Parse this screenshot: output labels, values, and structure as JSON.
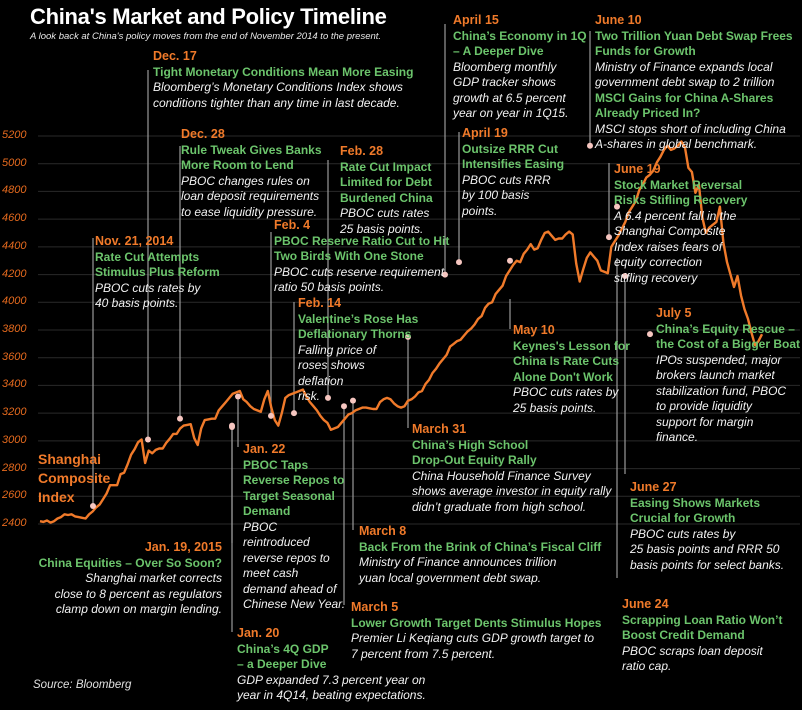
{
  "title": "China's Market and Policy Timeline",
  "subtitle": "A look back at China's policy moves from the end of November 2014 to the present.",
  "source": "Source: Bloomberg",
  "colors": {
    "background": "#000000",
    "line": "#f07a2a",
    "date": "#f07a2a",
    "headline": "#6cc46c",
    "body": "#f2f2f2",
    "marker": "#f6c6c0",
    "leader": "#9a9a9a",
    "grid": "#2a2a2a"
  },
  "chart_data": {
    "type": "line",
    "title": "China's Market and Policy Timeline",
    "series_label": [
      "Shanghai",
      "Composite",
      "Index"
    ],
    "xlabel": "",
    "ylabel": "",
    "ylim": [
      2400,
      5200
    ],
    "yticks": [
      5200,
      5000,
      4800,
      4600,
      4400,
      4200,
      4000,
      3800,
      3600,
      3400,
      3200,
      3000,
      2800,
      2600,
      2400
    ],
    "grid": true,
    "x_range": [
      "2014-11-21",
      "2015-07-08"
    ],
    "series": [
      {
        "name": "Shanghai Composite Index",
        "values": [
          2420,
          2415,
          2425,
          2410,
          2420,
          2440,
          2450,
          2470,
          2465,
          2470,
          2455,
          2450,
          2445,
          2440,
          2470,
          2490,
          2520,
          2540,
          2580,
          2620,
          2680,
          2680,
          2680,
          2760,
          2770,
          2830,
          2900,
          2940,
          2990,
          3010,
          2840,
          2930,
          2910,
          2935,
          2945,
          2945,
          2985,
          3015,
          3050,
          3050,
          3090,
          3110,
          3115,
          3120,
          3020,
          2970,
          3090,
          3150,
          3155,
          3160,
          3160,
          3220,
          3250,
          3280,
          3310,
          3340,
          3350,
          3360,
          3300,
          3280,
          3250,
          3230,
          3220,
          3210,
          3300,
          3360,
          3240,
          3150,
          3110,
          3200,
          3310,
          3330,
          3340,
          3350,
          3360,
          3370,
          3320,
          3280,
          3250,
          3220,
          3180,
          3150,
          3130,
          3080,
          3090,
          3100,
          3130,
          3160,
          3190,
          3200,
          3220,
          3230,
          3240,
          3240,
          3235,
          3230,
          3230,
          3280,
          3300,
          3310,
          3300,
          3270,
          3250,
          3240,
          3250,
          3290,
          3300,
          3320,
          3350,
          3360,
          3410,
          3440,
          3490,
          3520,
          3560,
          3590,
          3620,
          3680,
          3700,
          3720,
          3730,
          3760,
          3790,
          3810,
          3840,
          3880,
          3900,
          3960,
          3990,
          4000,
          4060,
          4090,
          4120,
          4190,
          4230,
          4270,
          4300,
          4290,
          4350,
          4380,
          4420,
          4380,
          4390,
          4450,
          4500,
          4510,
          4480,
          4450,
          4460,
          4460,
          4490,
          4510,
          4490,
          4280,
          4150,
          4240,
          4320,
          4360,
          4330,
          4300,
          4230,
          4220,
          4210,
          4400,
          4440,
          4480,
          4530,
          4580,
          4650,
          4690,
          4730,
          4810,
          4850,
          4900,
          4920,
          4950,
          5010,
          5050,
          5100,
          5130,
          5100,
          5110,
          5130,
          5160,
          5120,
          4970,
          4940,
          4790,
          4850,
          4610,
          4500,
          4540,
          4560,
          4580,
          4690,
          4430,
          4290,
          4200,
          4110,
          4190,
          4050,
          3950,
          3880,
          3780,
          3690,
          3720,
          3770
        ]
      }
    ],
    "events": [
      {
        "date": "Nov. 21, 2014",
        "value": 2530
      },
      {
        "date": "Dec. 17",
        "value": 3010
      },
      {
        "date": "Dec. 28",
        "value": 3160
      },
      {
        "date": "Jan. 19, 2015",
        "value": 3110
      },
      {
        "date": "Jan. 20",
        "value": 3100
      },
      {
        "date": "Jan. 22",
        "value": 3320
      },
      {
        "date": "Feb. 4",
        "value": 3180
      },
      {
        "date": "Feb. 14",
        "value": 3200
      },
      {
        "date": "Feb. 28",
        "value": 3310
      },
      {
        "date": "March 5",
        "value": 3250
      },
      {
        "date": "March 8",
        "value": 3290
      },
      {
        "date": "March 31",
        "value": 3750
      },
      {
        "date": "April 15",
        "value": 4200
      },
      {
        "date": "April 19",
        "value": 4290
      },
      {
        "date": "May 10",
        "value": 4300
      },
      {
        "date": "June 10",
        "value": 5130
      },
      {
        "date": "June 19",
        "value": 4470
      },
      {
        "date": "June 24",
        "value": 4690
      },
      {
        "date": "June 27",
        "value": 4190
      },
      {
        "date": "July 5",
        "value": 3770
      }
    ]
  },
  "annotations": [
    {
      "id": "nov21",
      "date": "Nov. 21, 2014",
      "headline": [
        "Rate Cut Attempts",
        "Stimulus Plus Reform"
      ],
      "body": [
        "PBOC cuts rates by",
        "40 basis points."
      ]
    },
    {
      "id": "dec17",
      "date": "Dec. 17",
      "headline": [
        "Tight Monetary Conditions Mean More Easing"
      ],
      "body": [
        "Bloomberg’s Monetary Conditions Index shows",
        "conditions tighter than any time in last decade."
      ]
    },
    {
      "id": "dec28",
      "date": "Dec. 28",
      "headline": [
        "Rule Tweak Gives Banks",
        "More Room to Lend"
      ],
      "body": [
        "PBOC changes rules on",
        "loan deposit requirements",
        "to ease liquidity pressure."
      ]
    },
    {
      "id": "jan19",
      "date": "Jan. 19, 2015",
      "headline": [
        "China Equities – Over So Soon?"
      ],
      "body": [
        "Shanghai market corrects",
        "close to 8 percent as regulators",
        "clamp down on margin lending."
      ]
    },
    {
      "id": "jan20",
      "date": "Jan. 20",
      "headline": [
        "China’s 4Q GDP",
        "– a Deeper Dive"
      ],
      "body": [
        "GDP expanded 7.3 percent year on",
        "year in 4Q14, beating expectations."
      ]
    },
    {
      "id": "jan22",
      "date": "Jan. 22",
      "headline": [
        "PBOC Taps",
        "Reverse Repos to",
        "Target Seasonal",
        "Demand"
      ],
      "body": [
        "PBOC",
        "reintroduced",
        "reverse repos to",
        "meet cash",
        "demand ahead of",
        "Chinese New Year."
      ]
    },
    {
      "id": "feb4",
      "date": "Feb. 4",
      "headline": [
        "PBOC Reserve Ratio Cut to Hit",
        "Two Birds With One Stone"
      ],
      "body": [
        "PBOC cuts reserve requirement",
        "ratio 50 basis points."
      ]
    },
    {
      "id": "feb14",
      "date": "Feb. 14",
      "headline": [
        "Valentine’s Rose Has",
        "Deflationary Thorns"
      ],
      "body": [
        "Falling price of",
        "roses shows",
        "deflation",
        "risk."
      ]
    },
    {
      "id": "feb28",
      "date": "Feb. 28",
      "headline": [
        "Rate Cut Impact",
        "Limited for Debt",
        "Burdened China"
      ],
      "body": [
        "PBOC cuts rates",
        "25 basis points."
      ]
    },
    {
      "id": "mar5",
      "date": "March 5",
      "headline": [
        "Lower Growth Target Dents Stimulus Hopes"
      ],
      "body": [
        "Premier Li Keqiang cuts GDP growth target to",
        "7 percent from 7.5 percent."
      ]
    },
    {
      "id": "mar8",
      "date": "March 8",
      "headline": [
        "Back From the Brink of China’s Fiscal Cliff"
      ],
      "body": [
        "Ministry of Finance announces trillion",
        "yuan local government debt swap."
      ]
    },
    {
      "id": "mar31",
      "date": "March 31",
      "headline": [
        "China’s High School",
        "Drop-Out Equity Rally"
      ],
      "body": [
        "China Household Finance Survey",
        "shows average investor in equity rally",
        "didn’t graduate from high school."
      ]
    },
    {
      "id": "apr15",
      "date": "April 15",
      "headline": [
        "China’s Economy in 1Q",
        "– A Deeper Dive"
      ],
      "body": [
        "Bloomberg monthly",
        "GDP tracker shows",
        "growth at 6.5 percent",
        "year on year in 1Q15."
      ]
    },
    {
      "id": "apr19",
      "date": "April 19",
      "headline": [
        "Outsize RRR Cut",
        "Intensifies Easing"
      ],
      "body": [
        "PBOC cuts RRR",
        "by 100 basis",
        "points."
      ]
    },
    {
      "id": "may10",
      "date": "May 10",
      "headline": [
        "Keynes's Lesson for",
        "China Is Rate Cuts",
        "Alone Don't Work"
      ],
      "body": [
        "PBOC cuts rates by",
        "25 basis points."
      ]
    },
    {
      "id": "jun10",
      "date": "June 10",
      "headline": [
        "Two Trillion Yuan Debt Swap Frees",
        "Funds for Growth"
      ],
      "body": [
        "Ministry of Finance expands local",
        "government debt swap to 2 trillion"
      ],
      "headline2": [
        "MSCI Gains for China A-Shares",
        "Already Priced In?"
      ],
      "body2": [
        "MSCI stops short of including China",
        "A-shares in global benchmark."
      ]
    },
    {
      "id": "jun19",
      "date": "June 19",
      "headline": [
        "Stock Market Reversal",
        "Risks Stifling Recovery"
      ],
      "body": [
        "A 6.4 percent fall in the",
        "Shanghai Composite",
        "Index raises fears of",
        "equity correction",
        "stifling recovery"
      ]
    },
    {
      "id": "jul5",
      "date": "July 5",
      "headline": [
        "China’s Equity Rescue –",
        "the Cost of a Bigger Boat"
      ],
      "body": [
        "IPOs suspended, major",
        "brokers launch market",
        "stabilization fund, PBOC",
        "to provide liquidity",
        "support for margin",
        "finance."
      ]
    },
    {
      "id": "jun27",
      "date": "June 27",
      "headline": [
        "Easing Shows Markets",
        "Crucial for Growth"
      ],
      "body": [
        "PBOC cuts rates by",
        "25 basis points and RRR 50",
        "basis points for select banks."
      ]
    },
    {
      "id": "jun24",
      "date": "June 24",
      "headline": [
        "Scrapping Loan Ratio Won’t",
        "Boost Credit Demand"
      ],
      "body": [
        "PBOC scraps loan deposit",
        "ratio cap."
      ]
    }
  ]
}
